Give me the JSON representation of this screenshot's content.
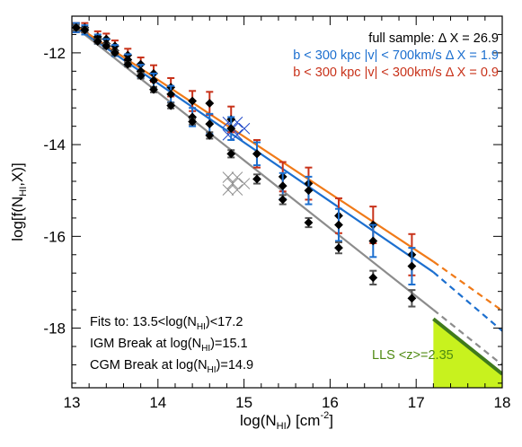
{
  "chart_data": {
    "type": "scatter",
    "xlabel": {
      "base": "log(N",
      "sub": "HI",
      "close": ") [cm",
      "sup": "-2",
      "end": "]"
    },
    "ylabel": {
      "base": "log[f(N",
      "sub": "HI",
      "end": ",X)]"
    },
    "xlim": [
      13,
      18
    ],
    "ylim": [
      -19.3,
      -11.2
    ],
    "x_ticks": [
      13,
      14,
      15,
      16,
      17,
      18
    ],
    "y_ticks": [
      -12,
      -14,
      -16,
      -18
    ],
    "x_minor_step": 0.2,
    "y_minor_step": 0.4,
    "grid": false,
    "legend_position": "top-right",
    "legend": [
      {
        "key": "full",
        "text": "full sample:  Δ X = 26.9",
        "color": "#000000"
      },
      {
        "key": "b700",
        "text": "b < 300 kpc |v| < 700km/s  Δ X =  1.9",
        "color": "#1c6fcf"
      },
      {
        "key": "b300",
        "text": "b < 300 kpc |v| < 300km/s  Δ X =  0.9",
        "color": "#c8321a"
      }
    ],
    "annotations": {
      "fits": {
        "base": "Fits to: 13.5<log(N",
        "sub": "HI",
        "end": ")<17.2"
      },
      "igm": {
        "base": "IGM Break at log(N",
        "sub": "HI",
        "end": ")=15.1"
      },
      "cgm": {
        "base": "CGM Break at log(N",
        "sub": "HI",
        "end": ")=14.9"
      },
      "lls": "LLS <z>=2.35"
    },
    "colors": {
      "full": "#8c8c8c",
      "b700": "#1c6fcf",
      "b300": "#f07a18",
      "b300_err": "#c8321a",
      "lls_fill": "#c8f21e",
      "lls_text": "#4f8a12",
      "lls_line": "#3f7a1c"
    },
    "lls_region": {
      "x": [
        17.2,
        18
      ],
      "y_upper": [
        -17.8,
        -19.0
      ]
    },
    "fits": [
      {
        "series": "full",
        "x_solid": [
          13.0,
          17.2
        ],
        "y_solid": [
          -11.38,
          -17.6
        ],
        "x_dashed": [
          17.2,
          18.0
        ],
        "y_dashed": [
          -17.6,
          -18.8
        ]
      },
      {
        "series": "b700",
        "x_solid": [
          13.0,
          17.2
        ],
        "y_solid": [
          -11.38,
          -16.78
        ],
        "x_dashed": [
          17.2,
          18.0
        ],
        "y_dashed": [
          -16.78,
          -18.06
        ]
      },
      {
        "series": "b300",
        "x_solid": [
          13.0,
          17.2
        ],
        "y_solid": [
          -11.35,
          -16.55
        ],
        "x_dashed": [
          17.2,
          18.0
        ],
        "y_dashed": [
          -16.55,
          -17.62
        ]
      }
    ],
    "series": [
      {
        "name": "full sample",
        "key": "full",
        "x": [
          13.05,
          13.15,
          13.3,
          13.4,
          13.5,
          13.65,
          13.8,
          13.95,
          14.15,
          14.4,
          14.6,
          14.85,
          15.15,
          15.45,
          15.75,
          16.1,
          16.5,
          16.95
        ],
        "y": [
          -11.45,
          -11.5,
          -11.75,
          -11.85,
          -12.0,
          -12.25,
          -12.5,
          -12.8,
          -13.15,
          -13.5,
          -13.8,
          -14.2,
          -14.75,
          -15.2,
          -15.7,
          -16.25,
          -16.9,
          -17.35
        ],
        "err": [
          0.06,
          0.05,
          0.05,
          0.05,
          0.05,
          0.05,
          0.06,
          0.06,
          0.06,
          0.06,
          0.07,
          0.08,
          0.1,
          0.1,
          0.1,
          0.12,
          0.15,
          0.18
        ]
      },
      {
        "name": "b < 300 kpc |v| < 700km/s",
        "key": "b700",
        "x": [
          13.05,
          13.15,
          13.3,
          13.4,
          13.5,
          13.65,
          13.8,
          13.95,
          14.15,
          14.4,
          14.6,
          14.85,
          15.15,
          15.45,
          15.75,
          16.1,
          16.5,
          16.95
        ],
        "y": [
          -11.45,
          -11.5,
          -11.7,
          -11.8,
          -11.95,
          -12.15,
          -12.4,
          -12.6,
          -12.9,
          -13.4,
          -13.55,
          -13.65,
          -14.2,
          -14.9,
          -15.0,
          -15.75,
          -16.1,
          -16.65
        ],
        "err": [
          0.1,
          0.1,
          0.1,
          0.1,
          0.12,
          0.12,
          0.14,
          0.15,
          0.18,
          0.2,
          0.22,
          0.25,
          0.25,
          0.28,
          0.3,
          0.35,
          0.35,
          0.4
        ]
      },
      {
        "name": "b < 300 kpc |v| < 300km/s",
        "key": "b300",
        "x": [
          13.05,
          13.15,
          13.3,
          13.4,
          13.5,
          13.65,
          13.8,
          13.95,
          14.15,
          14.4,
          14.6,
          14.85,
          15.15,
          15.45,
          15.75,
          16.1,
          16.5,
          16.95
        ],
        "y": [
          -11.45,
          -11.45,
          -11.65,
          -11.7,
          -11.85,
          -12.05,
          -12.25,
          -12.45,
          -12.75,
          -13.05,
          -13.1,
          -13.45,
          -14.2,
          -14.7,
          -14.85,
          -15.55,
          -15.75,
          -16.4
        ],
        "err": [
          0.1,
          0.1,
          0.12,
          0.12,
          0.12,
          0.14,
          0.15,
          0.18,
          0.2,
          0.22,
          0.25,
          0.28,
          0.3,
          0.32,
          0.35,
          0.38,
          0.4,
          0.45
        ]
      }
    ],
    "crossed_points": [
      {
        "x": 14.92,
        "y": -14.85,
        "color": "#8c8c8c"
      },
      {
        "x": 14.92,
        "y": -13.65,
        "color": "#2048c8"
      }
    ]
  }
}
